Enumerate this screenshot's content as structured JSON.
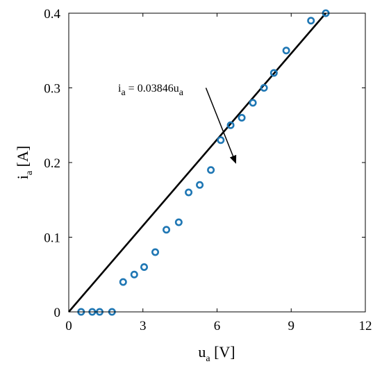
{
  "chart_data": {
    "type": "scatter",
    "xlim": [
      0,
      12
    ],
    "ylim": [
      0,
      0.4
    ],
    "xticks": [
      0,
      3,
      6,
      9,
      12
    ],
    "yticks": [
      0,
      0.1,
      0.2,
      0.3,
      0.4
    ],
    "xtick_labels": [
      "0",
      "3",
      "6",
      "9",
      "12"
    ],
    "ytick_labels": [
      "0",
      "0.1",
      "0.2",
      "0.3",
      "0.4"
    ],
    "xlabel": {
      "main": "u",
      "sub": "a",
      "unit": " [V]"
    },
    "ylabel": {
      "main": "i",
      "sub": "a",
      "unit": " [A]"
    },
    "grid": false,
    "series": [
      {
        "marker": "circle-open",
        "color": "#1f77b4",
        "x": [
          0.5,
          0.95,
          1.25,
          1.75,
          2.2,
          2.65,
          3.05,
          3.5,
          3.95,
          4.45,
          4.85,
          5.3,
          5.75,
          6.15,
          6.55,
          7.0,
          7.45,
          7.9,
          8.3,
          8.8,
          9.8,
          10.4
        ],
        "y": [
          0,
          0,
          0,
          0,
          0.04,
          0.05,
          0.06,
          0.08,
          0.11,
          0.12,
          0.16,
          0.17,
          0.19,
          0.23,
          0.25,
          0.26,
          0.28,
          0.3,
          0.32,
          0.35,
          0.39,
          0.4
        ]
      },
      {
        "type": "line",
        "color": "#000000",
        "slope": 0.03846,
        "x": [
          0,
          10.4
        ],
        "y": [
          0,
          0.4
        ]
      }
    ],
    "annotation": {
      "main": "i",
      "sub1": "a",
      "mid": " = 0.03846u",
      "sub2": "a",
      "arrow_tip": [
        6.75,
        0.2
      ],
      "arrow_tail": [
        5.55,
        0.3
      ]
    }
  }
}
